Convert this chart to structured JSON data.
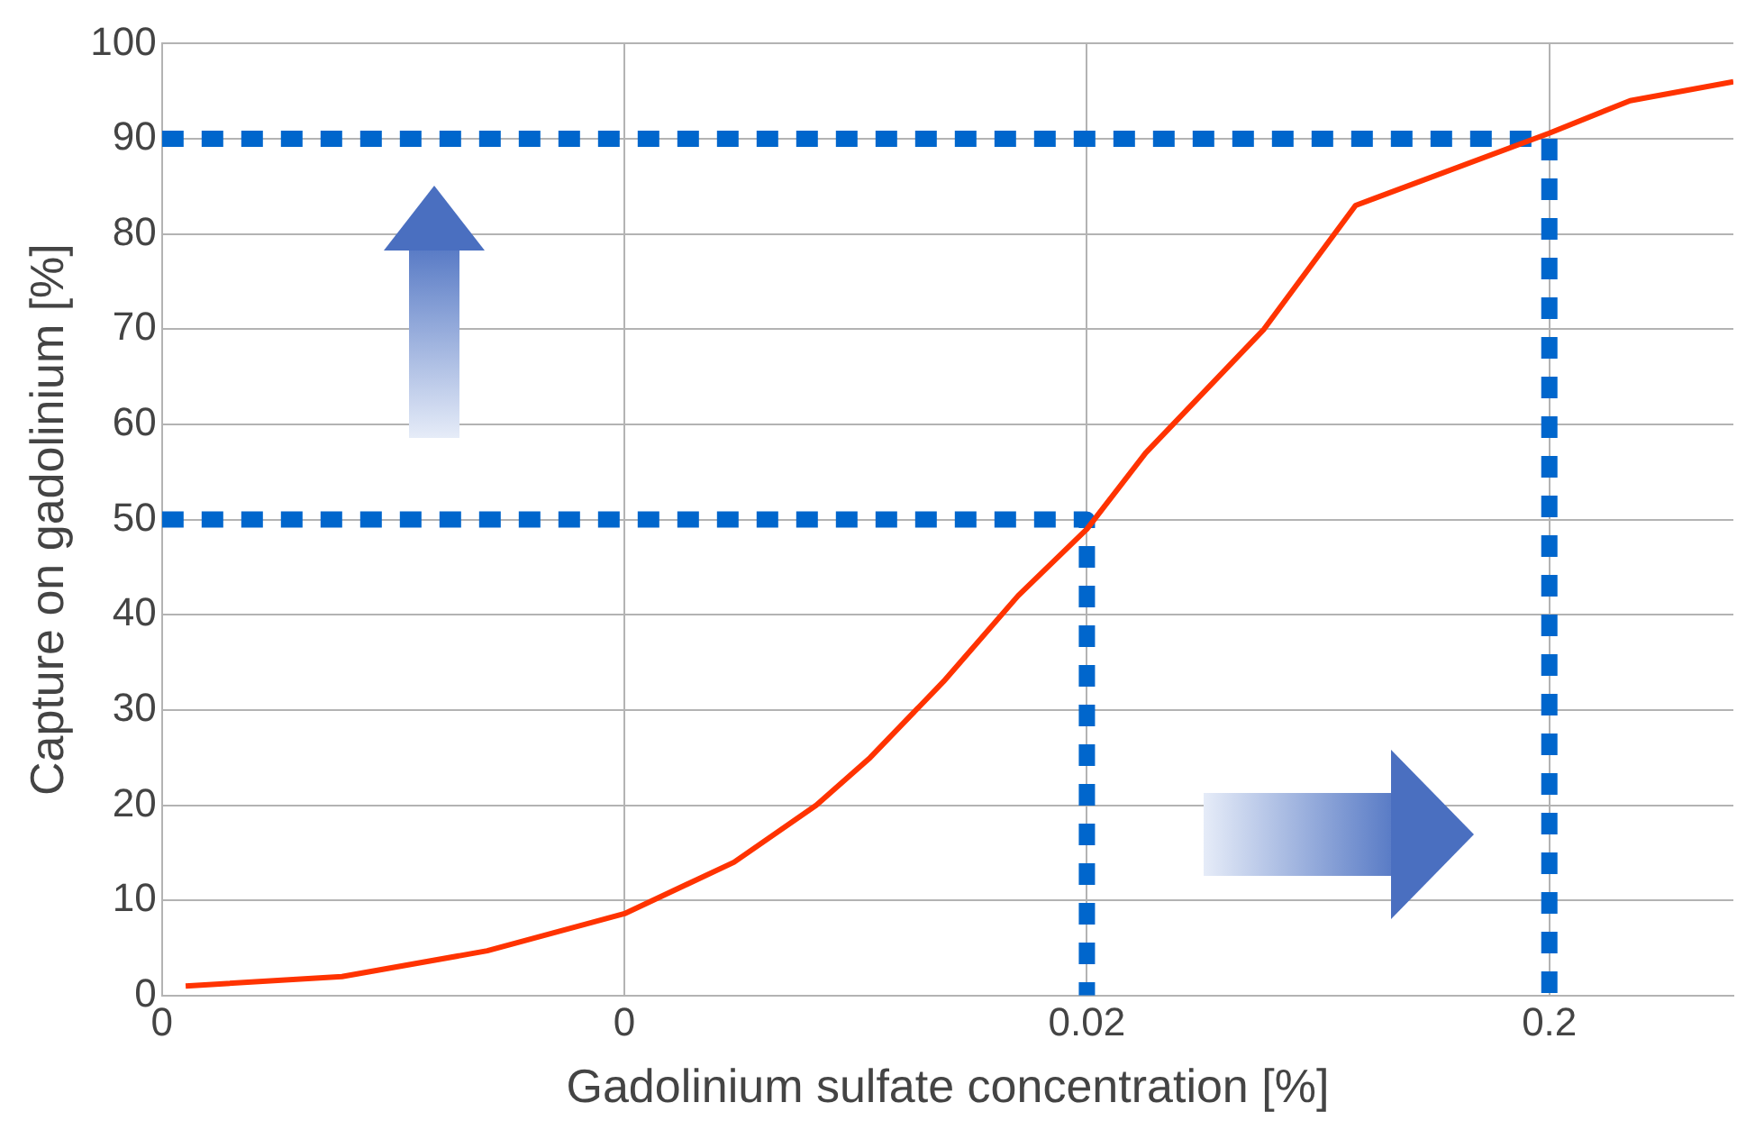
{
  "chart_data": {
    "type": "line",
    "xlabel": "Gadolinium sulfate concentration [%]",
    "ylabel": "Capture on gadolinium [%]",
    "log": "x",
    "xlim": [
      0.0002,
      0.5
    ],
    "xticks": [
      {
        "value": 0.0002,
        "label": "0"
      },
      {
        "value": 0.002,
        "label": "0"
      },
      0.02,
      0.2
    ],
    "ylim": [
      0,
      100
    ],
    "yticks": [
      0,
      10,
      20,
      30,
      40,
      50,
      60,
      70,
      80,
      90,
      100
    ],
    "grid": true,
    "marker": "none",
    "series": [
      {
        "color": "#ff3300",
        "line_style": "solid",
        "x": [
          0.000225,
          0.00049,
          0.00101,
          0.002,
          0.00345,
          0.0052,
          0.0068,
          0.0098,
          0.0142,
          0.02,
          0.0268,
          0.0483,
          0.0762,
          0.2,
          0.299,
          0.5
        ],
        "values": [
          1,
          2,
          4.7,
          8.6,
          14,
          20,
          25,
          33,
          42,
          49,
          57,
          70,
          83,
          90.6,
          94,
          96
        ]
      },
      {
        "color": "#0066cc",
        "line_style": "dashed",
        "x": [
          0.0002,
          0.02,
          0.02
        ],
        "values": [
          50,
          50,
          0
        ]
      },
      {
        "color": "#0066cc",
        "line_style": "dashed",
        "x": [
          0.0002,
          0.2,
          0.2
        ],
        "values": [
          90,
          90,
          0
        ]
      }
    ]
  }
}
